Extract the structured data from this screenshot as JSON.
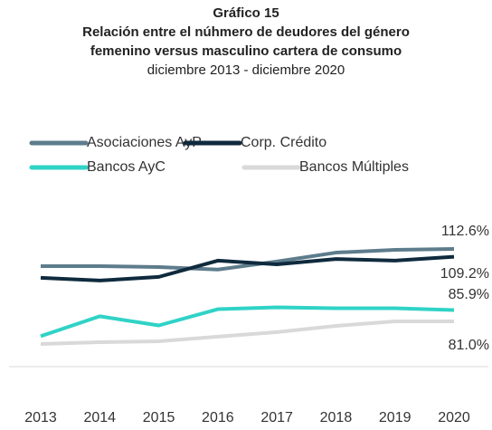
{
  "chart_data": {
    "type": "line",
    "title": "Gráfico 15",
    "subtitle": "Relación entre el núhmero de deudores del género femenino versus masculino cartera de consumo",
    "period": "diciembre 2013 - diciembre 2020",
    "categories": [
      "2013",
      "2014",
      "2015",
      "2016",
      "2017",
      "2018",
      "2019",
      "2020"
    ],
    "series": [
      {
        "name": "Asociaciones AyP",
        "color": "#5d7c8c",
        "values": [
          105.1,
          105.1,
          104.7,
          103.6,
          107.1,
          111.0,
          112.2,
          112.6
        ],
        "value_labels": [
          null,
          null,
          null,
          null,
          null,
          null,
          null,
          "112.6%"
        ]
      },
      {
        "name": "Corp. Crédito",
        "color": "#0f2a3d",
        "values": [
          100.0,
          98.8,
          100.4,
          107.5,
          105.9,
          108.2,
          107.5,
          109.2
        ],
        "value_labels": [
          null,
          null,
          null,
          null,
          null,
          null,
          null,
          "109.2%"
        ]
      },
      {
        "name": "Bancos AyC",
        "color": "#2fd3c6",
        "values": [
          74.5,
          83.2,
          79.2,
          86.3,
          87.1,
          86.7,
          86.7,
          85.9
        ],
        "value_labels": [
          null,
          null,
          null,
          null,
          null,
          null,
          null,
          "85.9%"
        ]
      },
      {
        "name": "Bancos Múltiples",
        "color": "#d9d9d9",
        "values": [
          71.1,
          71.9,
          72.3,
          74.3,
          76.3,
          79.0,
          81.0,
          81.0
        ],
        "value_labels": [
          null,
          null,
          null,
          null,
          null,
          null,
          null,
          "81.0%"
        ]
      }
    ]
  }
}
